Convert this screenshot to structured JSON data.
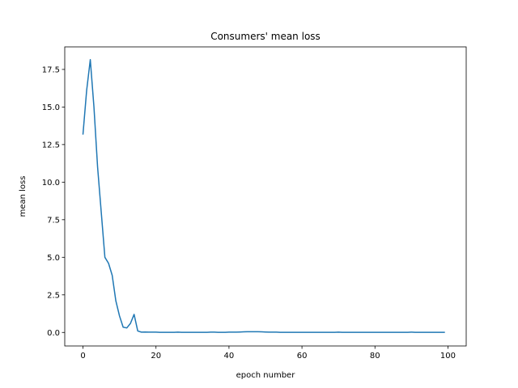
{
  "chart_data": {
    "type": "line",
    "title": "Consumers' mean loss",
    "xlabel": "epoch number",
    "ylabel": "mean loss",
    "xlim": [
      -5,
      105
    ],
    "ylim": [
      -0.9,
      19.0
    ],
    "xticks": [
      0,
      20,
      40,
      60,
      80,
      100
    ],
    "xtick_labels": [
      "0",
      "20",
      "40",
      "60",
      "80",
      "100"
    ],
    "yticks": [
      0.0,
      2.5,
      5.0,
      7.5,
      10.0,
      12.5,
      15.0,
      17.5
    ],
    "ytick_labels": [
      "0.0",
      "2.5",
      "5.0",
      "7.5",
      "10.0",
      "12.5",
      "15.0",
      "17.5"
    ],
    "grid": false,
    "line_color": "#1f77b4",
    "series": [
      {
        "x": [
          0,
          1,
          2,
          3,
          4,
          5,
          6,
          7,
          8,
          9,
          10,
          11,
          12,
          13,
          14,
          15,
          16,
          17,
          18,
          19,
          20,
          21,
          22,
          23,
          24,
          25,
          26,
          27,
          28,
          29,
          30,
          31,
          32,
          33,
          34,
          35,
          36,
          37,
          38,
          39,
          40,
          41,
          42,
          43,
          44,
          45,
          46,
          47,
          48,
          49,
          50,
          51,
          52,
          53,
          54,
          55,
          56,
          57,
          58,
          59,
          60,
          61,
          62,
          63,
          64,
          65,
          66,
          67,
          68,
          69,
          70,
          71,
          72,
          73,
          74,
          75,
          76,
          77,
          78,
          79,
          80,
          81,
          82,
          83,
          84,
          85,
          86,
          87,
          88,
          89,
          90,
          91,
          92,
          93,
          94,
          95,
          96,
          97,
          98,
          99
        ],
        "values": [
          13.2,
          16.1,
          18.15,
          15.0,
          11.0,
          8.0,
          5.0,
          4.6,
          3.8,
          2.1,
          1.1,
          0.35,
          0.3,
          0.6,
          1.2,
          0.1,
          0.02,
          0.03,
          0.02,
          0.02,
          0.02,
          0.01,
          0.01,
          0.01,
          0.01,
          0.01,
          0.02,
          0.01,
          0.01,
          0.01,
          0.01,
          0.01,
          0.01,
          0.01,
          0.01,
          0.02,
          0.02,
          0.01,
          0.01,
          0.01,
          0.02,
          0.02,
          0.02,
          0.03,
          0.04,
          0.05,
          0.05,
          0.05,
          0.05,
          0.04,
          0.03,
          0.02,
          0.02,
          0.02,
          0.01,
          0.01,
          0.01,
          0.01,
          0.01,
          0.01,
          0.01,
          0.01,
          0.01,
          0.01,
          0.01,
          0.01,
          0.01,
          0.01,
          0.01,
          0.01,
          0.02,
          0.01,
          0.01,
          0.01,
          0.01,
          0.01,
          0.01,
          0.01,
          0.01,
          0.01,
          0.01,
          0.01,
          0.01,
          0.01,
          0.01,
          0.01,
          0.01,
          0.01,
          0.01,
          0.01,
          0.02,
          0.01,
          0.01,
          0.01,
          0.01,
          0.01,
          0.01,
          0.01,
          0.01,
          0.01
        ]
      }
    ]
  }
}
